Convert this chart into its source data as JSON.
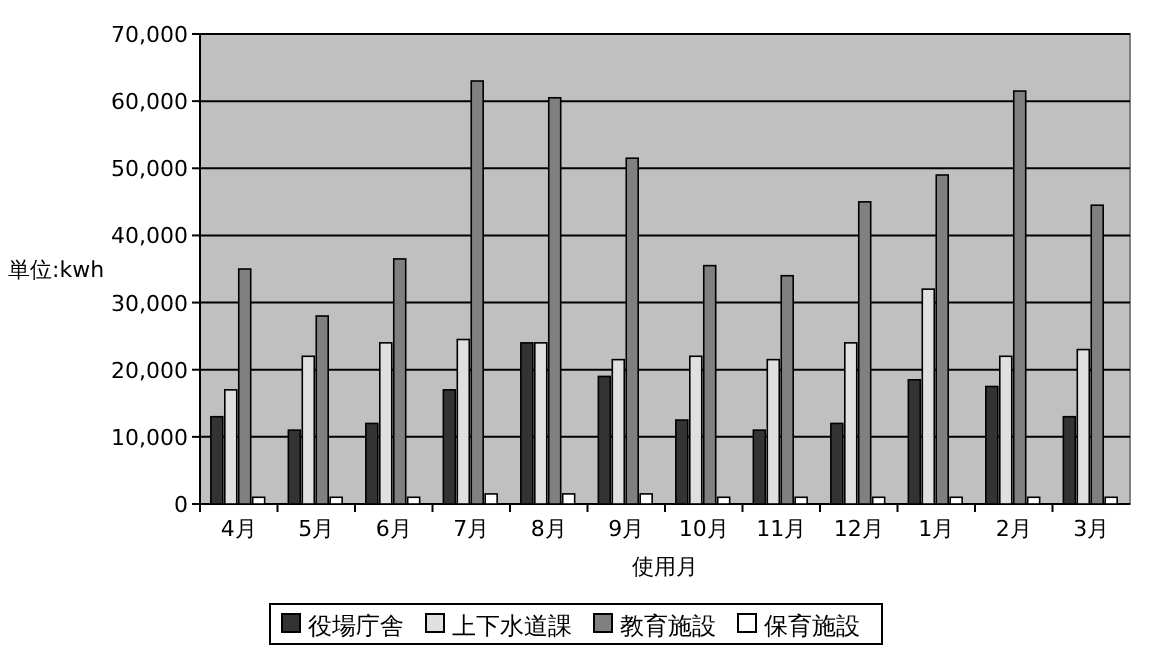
{
  "chart_data": {
    "type": "bar",
    "xlabel": "使用月",
    "ylabel": "単位:kwh",
    "categories": [
      "4月",
      "5月",
      "6月",
      "7月",
      "8月",
      "9月",
      "10月",
      "11月",
      "12月",
      "1月",
      "2月",
      "3月"
    ],
    "series": [
      {
        "name": "役場庁舎",
        "color": "#333333",
        "values": [
          13000,
          11000,
          12000,
          17000,
          24000,
          19000,
          12500,
          11000,
          12000,
          18500,
          17500,
          13000
        ]
      },
      {
        "name": "上下水道課",
        "color": "#e0e0e0",
        "values": [
          17000,
          22000,
          24000,
          24500,
          24000,
          21500,
          22000,
          21500,
          24000,
          32000,
          22000,
          23000
        ]
      },
      {
        "name": "教育施設",
        "color": "#808080",
        "values": [
          35000,
          28000,
          36500,
          63000,
          60500,
          51500,
          35500,
          34000,
          45000,
          49000,
          61500,
          44500
        ]
      },
      {
        "name": "保育施設",
        "color": "#ffffff",
        "values": [
          1000,
          1000,
          1000,
          1500,
          1500,
          1500,
          1000,
          1000,
          1000,
          1000,
          1000,
          1000
        ]
      }
    ],
    "ylim": [
      0,
      70000
    ],
    "yticks": [
      0,
      {
        "value": 10000,
        "label": "10,000"
      },
      {
        "value": 20000,
        "label": "20,000"
      },
      {
        "value": 30000,
        "label": "30,000"
      },
      {
        "value": 40000,
        "label": "40,000"
      },
      {
        "value": 50000,
        "label": "50,000"
      },
      {
        "value": 60000,
        "label": "60,000"
      },
      {
        "value": 70000,
        "label": "70,000"
      }
    ],
    "grid": "y",
    "legend": "bottom"
  }
}
